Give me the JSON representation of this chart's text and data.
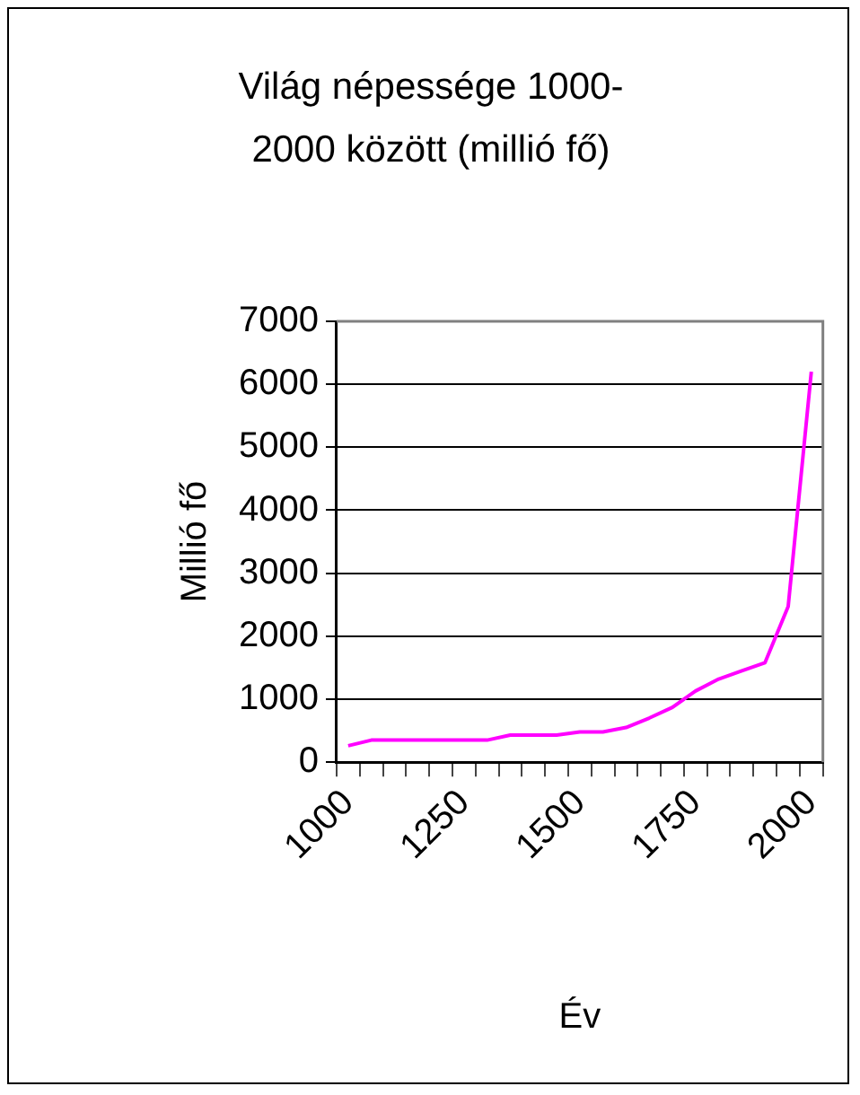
{
  "chart_data": {
    "type": "line",
    "title": "Világ népessége 1000-2000 között (millió fő)",
    "xlabel": "Év",
    "ylabel": "Millió fő",
    "categories": [
      "1000",
      null,
      null,
      null,
      null,
      "1250",
      null,
      null,
      null,
      null,
      "1500",
      null,
      null,
      null,
      null,
      "1750",
      null,
      null,
      null,
      null,
      "2000"
    ],
    "series": [
      {
        "color": "#ff00ff",
        "values": [
          260,
          350,
          350,
          350,
          350,
          350,
          350,
          430,
          430,
          430,
          480,
          480,
          550,
          700,
          870,
          1130,
          1320,
          1450,
          1580,
          2470,
          6200
        ]
      }
    ],
    "ylim": [
      0,
      7000
    ],
    "yticks": [
      0,
      1000,
      2000,
      3000,
      4000,
      5000,
      6000,
      7000
    ],
    "grid": "y",
    "legend": false,
    "marker": "none",
    "line_style": "solid"
  }
}
